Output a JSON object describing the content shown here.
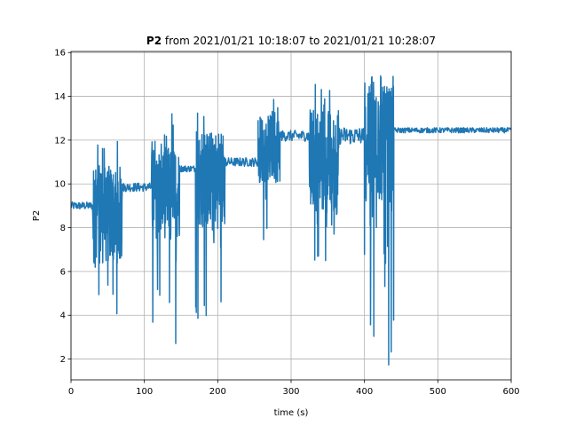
{
  "chart_data": {
    "type": "line",
    "title_bold": "P2",
    "title_rest": " from 2021/01/21 10:18:07 to 2021/01/21 10:28:07",
    "xlabel": "time (s)",
    "ylabel": "P2",
    "xlim": [
      0,
      600
    ],
    "ylim": [
      1.05,
      16.05
    ],
    "grid": true,
    "x_ticks": [
      0,
      100,
      200,
      300,
      400,
      500,
      600
    ],
    "y_ticks": [
      2,
      4,
      6,
      8,
      10,
      12,
      14,
      16
    ],
    "series_color": "#1f77b4",
    "segments": [
      {
        "x": [
          0,
          30
        ],
        "base": 9.0,
        "amp": 0.18,
        "noise": "low"
      },
      {
        "x": [
          30,
          70
        ],
        "base": 8.6,
        "amp": 3.2,
        "noise": "high",
        "min": 3.2,
        "max": 12.0
      },
      {
        "x": [
          70,
          110
        ],
        "base": 9.85,
        "amp": 0.2,
        "noise": "low"
      },
      {
        "x": [
          110,
          148
        ],
        "base": 9.6,
        "amp": 3.0,
        "noise": "high",
        "min": 2.7,
        "max": 13.5
      },
      {
        "x": [
          148,
          170
        ],
        "base": 10.7,
        "amp": 0.15,
        "noise": "low"
      },
      {
        "x": [
          170,
          210
        ],
        "base": 10.2,
        "amp": 3.2,
        "noise": "high",
        "min": 3.7,
        "max": 14.0
      },
      {
        "x": [
          210,
          255
        ],
        "base": 11.0,
        "amp": 0.2,
        "noise": "low"
      },
      {
        "x": [
          255,
          285
        ],
        "base": 11.6,
        "amp": 2.2,
        "noise": "high",
        "min": 7.2,
        "max": 14.3
      },
      {
        "x": [
          285,
          325
        ],
        "base": 12.2,
        "amp": 0.25,
        "noise": "low"
      },
      {
        "x": [
          325,
          365
        ],
        "base": 11.0,
        "amp": 3.5,
        "noise": "high",
        "min": 5.8,
        "max": 15.0
      },
      {
        "x": [
          365,
          400
        ],
        "base": 12.2,
        "amp": 0.4,
        "noise": "low"
      },
      {
        "x": [
          400,
          440
        ],
        "base": 11.8,
        "amp": 3.8,
        "noise": "high",
        "min": 1.7,
        "max": 15.4
      },
      {
        "x": [
          440,
          600
        ],
        "base": 12.45,
        "amp": 0.12,
        "noise": "low"
      }
    ]
  }
}
